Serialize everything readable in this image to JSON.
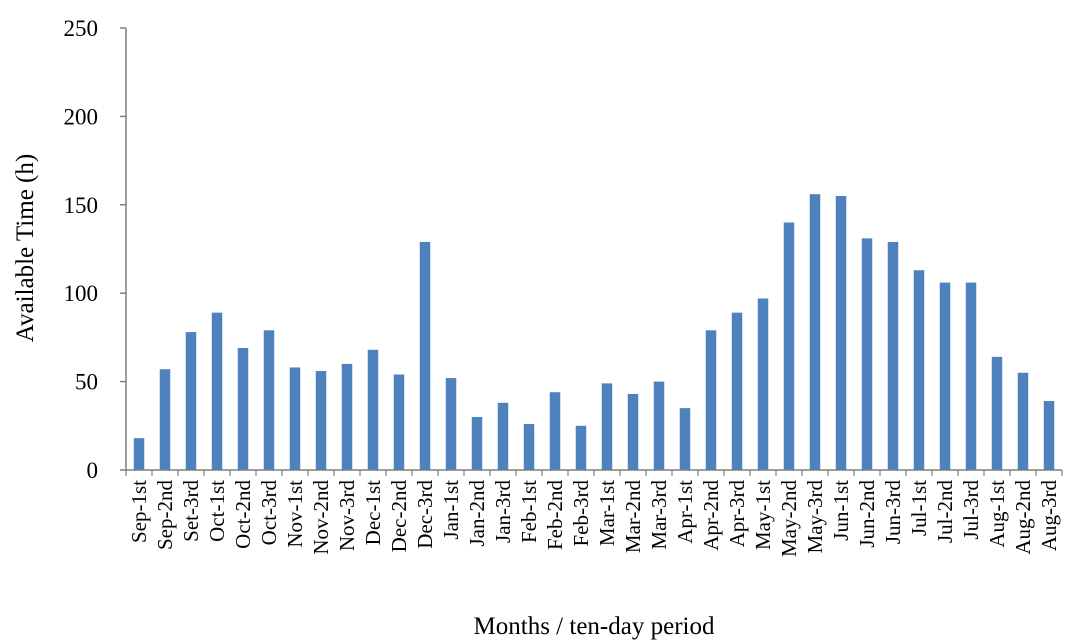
{
  "chart_data": {
    "type": "bar",
    "title": "",
    "xlabel": "Months / ten-day period",
    "ylabel": "Available Time (h)",
    "ylim": [
      0,
      250
    ],
    "yticks": [
      "0",
      "50",
      "100",
      "150",
      "200",
      "250"
    ],
    "grid": false,
    "legend": "none",
    "bar_color": "#4F81BD",
    "categories": [
      "Sep-1st",
      "Sep-2nd",
      "Set-3rd",
      "Oct-1st",
      "Oct-2nd",
      "Oct-3rd",
      "Nov-1st",
      "Nov-2nd",
      "Nov-3rd",
      "Dec-1st",
      "Dec-2nd",
      "Dec-3rd",
      "Jan-1st",
      "Jan-2nd",
      "Jan-3rd",
      "Feb-1st",
      "Feb-2nd",
      "Feb-3rd",
      "Mar-1st",
      "Mar-2nd",
      "Mar-3rd",
      "Apr-1st",
      "Apr-2nd",
      "Apr-3rd",
      "May-1st",
      "May-2nd",
      "May-3rd",
      "Jun-1st",
      "Jun-2nd",
      "Jun-3rd",
      "Jul-1st",
      "Jul-2nd",
      "Jul-3rd",
      "Aug-1st",
      "Aug-2nd",
      "Aug-3rd"
    ],
    "values": [
      18,
      57,
      78,
      89,
      69,
      79,
      58,
      56,
      60,
      68,
      54,
      129,
      52,
      30,
      38,
      26,
      44,
      25,
      49,
      43,
      50,
      35,
      79,
      89,
      97,
      140,
      156,
      155,
      131,
      129,
      113,
      106,
      106,
      64,
      55,
      39
    ]
  }
}
